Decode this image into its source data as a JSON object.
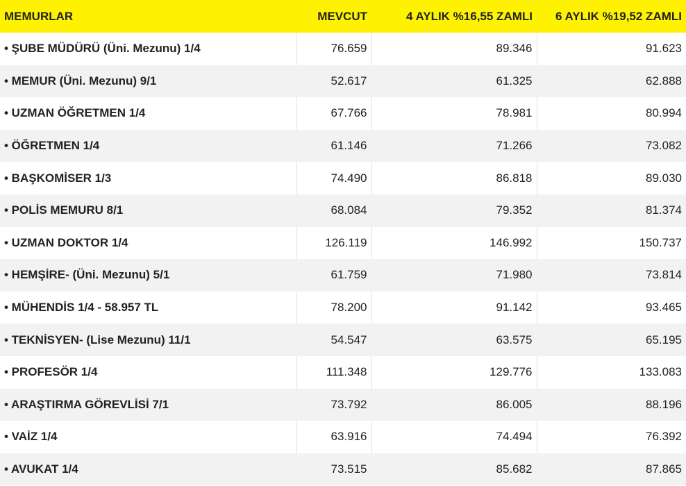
{
  "table": {
    "header": [
      "MEMURLAR",
      "MEVCUT",
      "4 AYLIK %16,55 ZAMLI",
      "6 AYLIK %19,52 ZAMLI"
    ],
    "rows": [
      [
        "• ŞUBE MÜDÜRÜ (Üni. Mezunu) 1/4",
        "76.659",
        "89.346",
        "91.623"
      ],
      [
        "• MEMUR (Üni. Mezunu) 9/1",
        "52.617",
        "61.325",
        "62.888"
      ],
      [
        "• UZMAN ÖĞRETMEN 1/4",
        "67.766",
        "78.981",
        "80.994"
      ],
      [
        "• ÖĞRETMEN 1/4",
        "61.146",
        "71.266",
        "73.082"
      ],
      [
        "• BAŞKOMİSER 1/3",
        "74.490",
        "86.818",
        "89.030"
      ],
      [
        "• POLİS MEMURU 8/1",
        "68.084",
        "79.352",
        "81.374"
      ],
      [
        "• UZMAN DOKTOR 1/4",
        "126.119",
        "146.992",
        "150.737"
      ],
      [
        "• HEMŞİRE- (Üni. Mezunu) 5/1",
        "61.759",
        "71.980",
        "73.814"
      ],
      [
        "• MÜHENDİS 1/4 - 58.957 TL",
        "78.200",
        "91.142",
        "93.465"
      ],
      [
        "• TEKNİSYEN- (Lise Mezunu) 11/1",
        "54.547",
        "63.575",
        "65.195"
      ],
      [
        "• PROFESÖR 1/4",
        "111.348",
        "129.776",
        "133.083"
      ],
      [
        "• ARAŞTIRMA GÖREVLİSİ 7/1",
        "73.792",
        "86.005",
        "88.196"
      ],
      [
        "• VAİZ 1/4",
        "63.916",
        "74.494",
        "76.392"
      ],
      [
        "• AVUKAT 1/4",
        "73.515",
        "85.682",
        "87.865"
      ]
    ]
  }
}
